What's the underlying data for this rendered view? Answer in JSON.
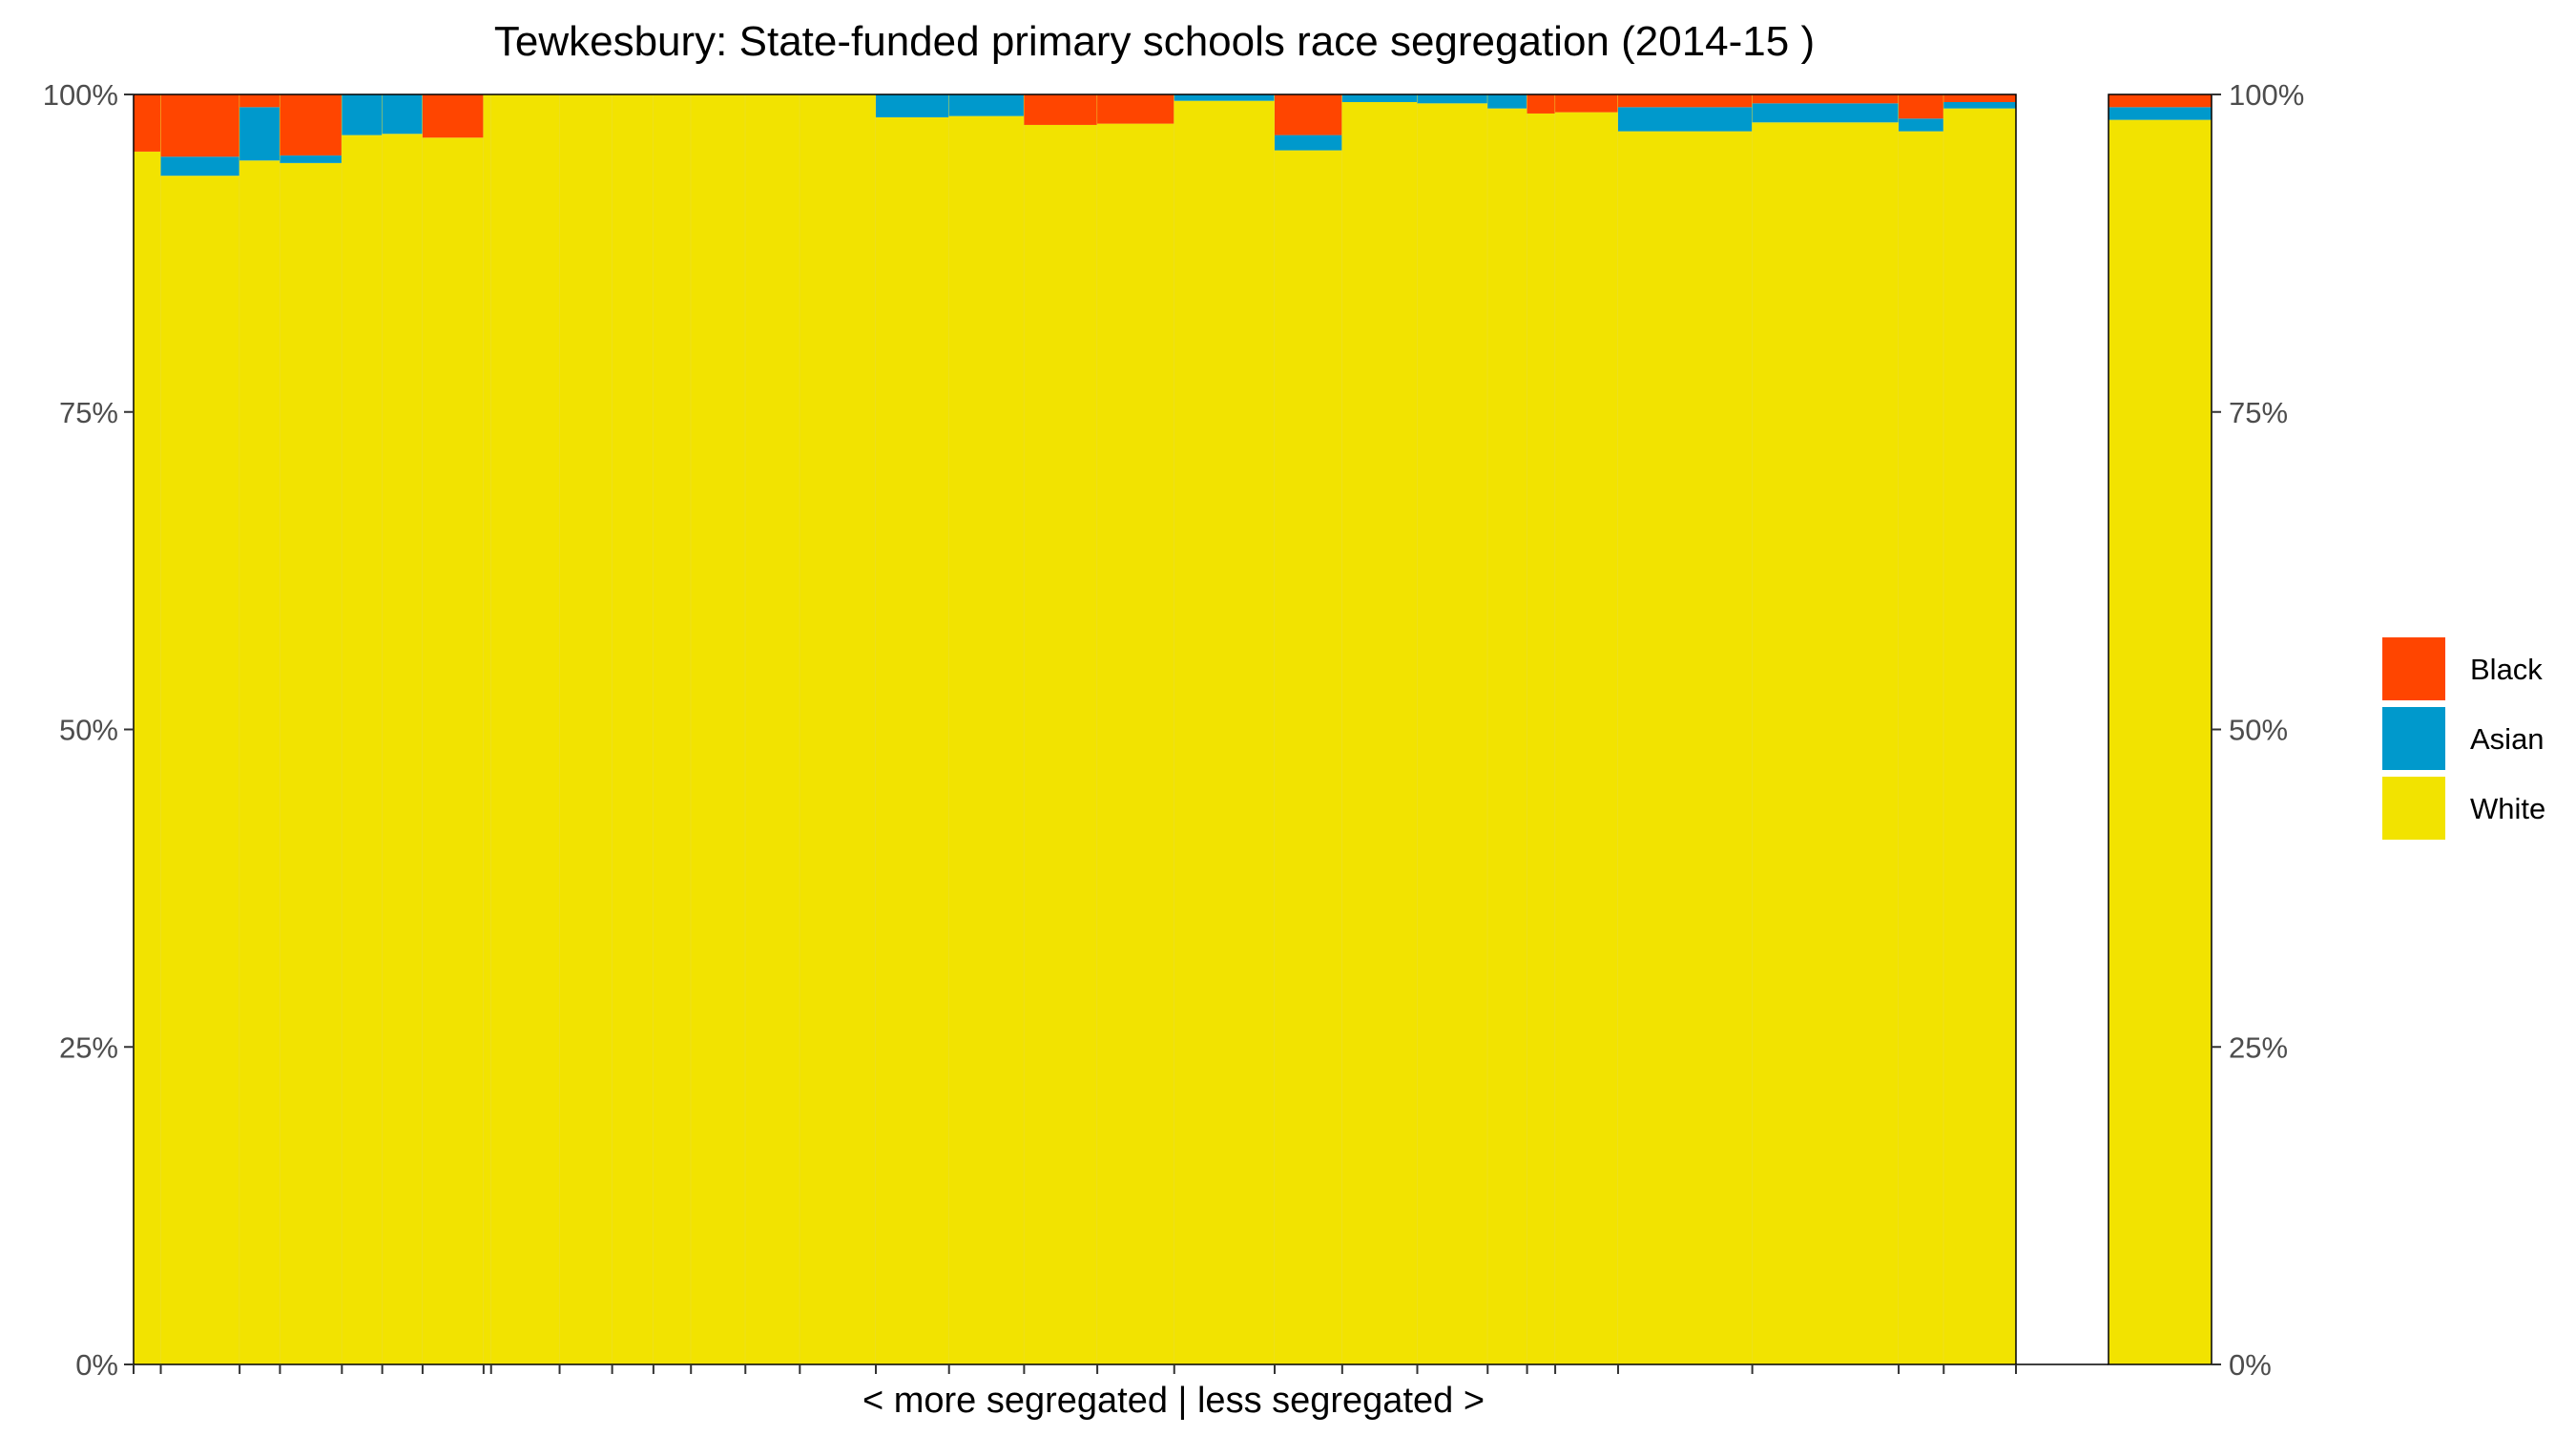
{
  "chart_data": {
    "type": "bar",
    "title": "Tewkesbury: State-funded primary schools race segregation (2014-15 )",
    "xlabel": "< more segregated | less segregated >",
    "ylabel": "",
    "ylim": [
      0,
      1
    ],
    "y_ticks": [
      "0%",
      "25%",
      "50%",
      "75%",
      "100%"
    ],
    "legend": {
      "placement": "right",
      "entries": [
        "Black",
        "Asian",
        "White"
      ]
    },
    "colors": {
      "Black": "#FF4500",
      "Asian": "#0099CC",
      "White": "#F2E300"
    },
    "stack_order_bottom_to_top": [
      "White",
      "Asian",
      "Black"
    ],
    "note": "Variable-width stacked bars (Marimekko); widths proportional to school size. Last bar is the district total, separated by a gap.",
    "schools": [
      {
        "width": 29,
        "white": 0.955,
        "asian": 0.0,
        "black": 0.045
      },
      {
        "width": 84,
        "white": 0.936,
        "asian": 0.015,
        "black": 0.049
      },
      {
        "width": 43,
        "white": 0.948,
        "asian": 0.042,
        "black": 0.01
      },
      {
        "width": 66,
        "white": 0.946,
        "asian": 0.006,
        "black": 0.048
      },
      {
        "width": 43,
        "white": 0.968,
        "asian": 0.032,
        "black": 0.0
      },
      {
        "width": 43,
        "white": 0.969,
        "asian": 0.031,
        "black": 0.0
      },
      {
        "width": 65,
        "white": 0.966,
        "asian": 0.0,
        "black": 0.034
      },
      {
        "width": 8,
        "white": 1.0,
        "asian": 0.0,
        "black": 0.0
      },
      {
        "width": 73,
        "white": 1.0,
        "asian": 0.0,
        "black": 0.0
      },
      {
        "width": 56,
        "white": 1.0,
        "asian": 0.0,
        "black": 0.0
      },
      {
        "width": 44,
        "white": 1.0,
        "asian": 0.0,
        "black": 0.0
      },
      {
        "width": 40,
        "white": 1.0,
        "asian": 0.0,
        "black": 0.0
      },
      {
        "width": 58,
        "white": 1.0,
        "asian": 0.0,
        "black": 0.0
      },
      {
        "width": 58,
        "white": 1.0,
        "asian": 0.0,
        "black": 0.0
      },
      {
        "width": 81,
        "white": 1.0,
        "asian": 0.0,
        "black": 0.0
      },
      {
        "width": 78,
        "white": 0.982,
        "asian": 0.018,
        "black": 0.0
      },
      {
        "width": 80,
        "white": 0.983,
        "asian": 0.017,
        "black": 0.0
      },
      {
        "width": 78,
        "white": 0.976,
        "asian": 0.0,
        "black": 0.024
      },
      {
        "width": 82,
        "white": 0.977,
        "asian": 0.0,
        "black": 0.023
      },
      {
        "width": 107,
        "white": 0.995,
        "asian": 0.005,
        "black": 0.0
      },
      {
        "width": 72,
        "white": 0.956,
        "asian": 0.012,
        "black": 0.032
      },
      {
        "width": 80,
        "white": 0.994,
        "asian": 0.006,
        "black": 0.0
      },
      {
        "width": 75,
        "white": 0.993,
        "asian": 0.007,
        "black": 0.0
      },
      {
        "width": 42,
        "white": 0.989,
        "asian": 0.011,
        "black": 0.0
      },
      {
        "width": 30,
        "white": 0.985,
        "asian": 0.0,
        "black": 0.015
      },
      {
        "width": 67,
        "white": 0.986,
        "asian": 0.0,
        "black": 0.014
      },
      {
        "width": 143,
        "white": 0.971,
        "asian": 0.019,
        "black": 0.01
      },
      {
        "width": 156,
        "white": 0.978,
        "asian": 0.015,
        "black": 0.007
      },
      {
        "width": 48,
        "white": 0.971,
        "asian": 0.01,
        "black": 0.019
      },
      {
        "width": 77,
        "white": 0.989,
        "asian": 0.005,
        "black": 0.006
      }
    ],
    "total": {
      "white": 0.98,
      "asian": 0.01,
      "black": 0.01
    }
  }
}
